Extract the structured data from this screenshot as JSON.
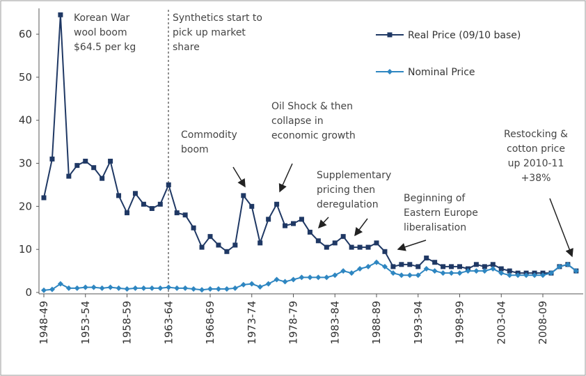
{
  "chart_data": {
    "type": "line",
    "categories": [
      "1948-49",
      null,
      null,
      null,
      null,
      "1953-54",
      null,
      null,
      null,
      null,
      "1958-59",
      null,
      null,
      null,
      null,
      "1963-64",
      null,
      null,
      null,
      null,
      "1968-69",
      null,
      null,
      null,
      null,
      "1973-74",
      null,
      null,
      null,
      null,
      "1978-79",
      null,
      null,
      null,
      null,
      "1983-84",
      null,
      null,
      null,
      null,
      "1988-89",
      null,
      null,
      null,
      null,
      "1993-94",
      null,
      null,
      null,
      null,
      "1998-99",
      null,
      null,
      null,
      null,
      "2003-04",
      null,
      null,
      null,
      null,
      "2008-09",
      null,
      null,
      null,
      null
    ],
    "series": [
      {
        "name": "Real Price (09/10 base)",
        "color": "#1f3864",
        "values": [
          22,
          31,
          64.5,
          27,
          29.5,
          30.5,
          29,
          26.5,
          30.5,
          22.5,
          18.5,
          23,
          20.5,
          19.5,
          20.5,
          25,
          18.5,
          18,
          15,
          10.5,
          13,
          11,
          9.5,
          11,
          22.5,
          20,
          11.5,
          17,
          20.5,
          15.5,
          16,
          17,
          14,
          12,
          10.5,
          11.5,
          13,
          10.5,
          10.5,
          10.5,
          11.5,
          9.5,
          6,
          6.5,
          6.5,
          6,
          8,
          7,
          6,
          6,
          6,
          5.5,
          6.5,
          6,
          6.5,
          5.5,
          5,
          4.5,
          4.5,
          4.5,
          4.5,
          4.5,
          6,
          6.5,
          5
        ]
      },
      {
        "name": "Nominal Price",
        "color": "#2e86c1",
        "values": [
          0.5,
          0.7,
          2,
          1,
          1,
          1.2,
          1.2,
          1,
          1.2,
          1,
          0.8,
          1,
          1,
          1,
          1,
          1.2,
          1,
          1,
          0.8,
          0.6,
          0.8,
          0.8,
          0.8,
          1,
          1.8,
          2,
          1.3,
          2,
          3,
          2.5,
          3,
          3.5,
          3.5,
          3.5,
          3.5,
          4,
          5,
          4.5,
          5.5,
          6,
          7,
          6,
          4.5,
          4,
          4,
          4,
          5.5,
          5,
          4.5,
          4.5,
          4.5,
          5,
          5,
          5,
          5.5,
          4.5,
          4,
          4,
          4,
          4,
          4,
          4.5,
          6,
          6.5,
          5
        ]
      }
    ],
    "ylim": [
      0,
      66
    ],
    "yticks": [
      0,
      10,
      20,
      30,
      40,
      50,
      60
    ],
    "annotations": [
      {
        "text": [
          "Korean War",
          "wool boom",
          "$64.5 per kg"
        ]
      },
      {
        "text": [
          "Synthetics start to",
          "pick up market",
          "share"
        ]
      },
      {
        "text": [
          "Commodity",
          "boom"
        ]
      },
      {
        "text": [
          "Oil Shock & then",
          "collapse in",
          "economic growth"
        ]
      },
      {
        "text": [
          "Supplementary",
          "pricing then",
          "deregulation"
        ]
      },
      {
        "text": [
          "Beginning of",
          "Eastern Europe",
          "liberalisation"
        ]
      },
      {
        "text": [
          "Restocking &",
          "cotton price",
          "up 2010-11",
          "+38%"
        ]
      }
    ]
  }
}
